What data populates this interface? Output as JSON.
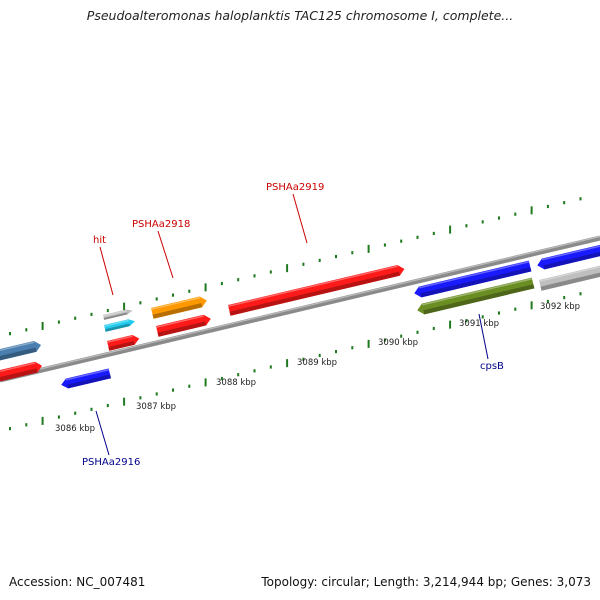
{
  "title": "Pseudoalteromonas haloplanktis TAC125 chromosome I, complete...",
  "accession_text": "Accession: NC_007481",
  "summary_text": "Topology: circular; Length: 3,214,944 bp; Genes: 3,073",
  "colors": {
    "backbone": "#8a8a8a",
    "tick": "#1f7a1f",
    "label_red": "#cc0000",
    "label_blue": "#00008b"
  },
  "ruler": {
    "unit": "kbp",
    "labels": [
      "3086 kbp",
      "3087 kbp",
      "3088 kbp",
      "3089 kbp",
      "3090 kbp",
      "3091 kbp",
      "3092 kbp"
    ]
  },
  "genes": [
    {
      "name": "",
      "strand": "+",
      "color": "#4a7fb0"
    },
    {
      "name": "",
      "strand": "+",
      "color": "#ff1a1a"
    },
    {
      "name": "PSHAa2916",
      "strand": "-",
      "color": "#1a1aff"
    },
    {
      "name": "hit",
      "strand": "+",
      "color": "#bfbfbf"
    },
    {
      "name": "",
      "strand": "+",
      "color": "#22ccee"
    },
    {
      "name": "",
      "strand": "+",
      "color": "#ff1a1a"
    },
    {
      "name": "PSHAa2918",
      "strand": "+",
      "color": "#ff9900"
    },
    {
      "name": "",
      "strand": "+",
      "color": "#ff1a1a"
    },
    {
      "name": "PSHAa2919",
      "strand": "+",
      "color": "#ff1a1a"
    },
    {
      "name": "",
      "strand": "-",
      "color": "#1a1aff"
    },
    {
      "name": "cpsB",
      "strand": "-",
      "color": "#6b8e23"
    },
    {
      "name": "",
      "strand": "-",
      "color": "#1a1aff"
    },
    {
      "name": "",
      "strand": "+",
      "color": "#bfbfbf"
    }
  ]
}
